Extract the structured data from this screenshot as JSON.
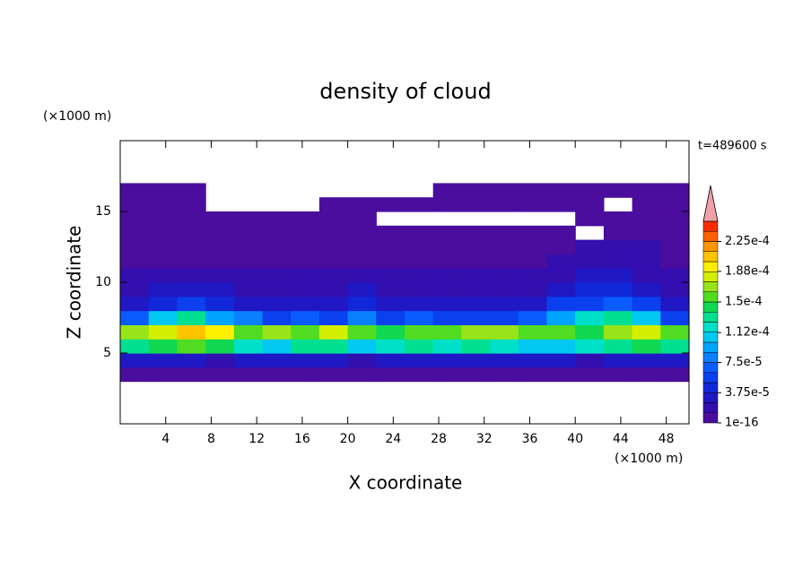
{
  "chart_data": {
    "type": "contour",
    "title": "density of cloud",
    "x_label": "X coordinate",
    "y_label": "Z coordinate",
    "x_unit": "(×1000 m)",
    "y_unit": "(×1000 m)",
    "annotation": "t=489600 s",
    "xlim": [
      0,
      50
    ],
    "ylim": [
      0,
      20
    ],
    "xticks": [
      4,
      8,
      12,
      16,
      20,
      24,
      28,
      32,
      36,
      40,
      44,
      48
    ],
    "yticks": [
      5,
      10,
      15
    ],
    "x": [
      1.25,
      3.75,
      6.25,
      8.75,
      11.25,
      13.75,
      16.25,
      18.75,
      21.25,
      23.75,
      26.25,
      28.75,
      31.25,
      33.75,
      36.25,
      38.75,
      41.25,
      43.75,
      46.25,
      48.75
    ],
    "y": [
      0.5,
      1.5,
      2.5,
      3.5,
      4.5,
      5.5,
      6.5,
      7.5,
      8.5,
      9.5,
      10.5,
      11.5,
      12.5,
      13.5,
      14.5,
      15.5,
      16.5,
      17.5,
      18.5,
      19.5
    ],
    "z": [
      [
        null,
        null,
        null,
        null,
        null,
        null,
        null,
        null,
        null,
        null,
        null,
        null,
        null,
        null,
        null,
        null,
        null,
        null,
        null,
        null
      ],
      [
        null,
        null,
        null,
        null,
        null,
        null,
        null,
        null,
        null,
        null,
        null,
        null,
        null,
        null,
        null,
        null,
        null,
        null,
        null,
        null
      ],
      [
        null,
        null,
        null,
        null,
        null,
        null,
        null,
        null,
        null,
        null,
        null,
        null,
        null,
        null,
        null,
        null,
        null,
        null,
        null,
        null
      ],
      [
        3e-06,
        3e-06,
        3e-06,
        3e-06,
        3e-06,
        3e-06,
        3e-06,
        3e-06,
        3e-06,
        3e-06,
        3e-06,
        3e-06,
        3e-06,
        3e-06,
        3e-06,
        3e-06,
        3e-06,
        3e-06,
        3e-06,
        3e-06
      ],
      [
        3e-05,
        2.5e-05,
        3e-05,
        2e-05,
        3e-05,
        3.5e-05,
        2.5e-05,
        3e-05,
        2e-05,
        3e-05,
        2.5e-05,
        3e-05,
        3.5e-05,
        2.5e-05,
        3e-05,
        2.5e-05,
        2e-05,
        3e-05,
        2.5e-05,
        3e-05
      ],
      [
        0.00013,
        0.00014,
        0.00015,
        0.000145,
        0.00012,
        0.00011,
        0.00013,
        0.000125,
        0.00011,
        0.00012,
        0.000135,
        0.00012,
        0.00013,
        0.000115,
        0.00011,
        0.0001,
        0.00012,
        0.00013,
        0.00014,
        0.00013
      ],
      [
        0.00017,
        0.00018,
        0.0002,
        0.00019,
        0.00016,
        0.00017,
        0.00015,
        0.00018,
        0.00016,
        0.00014,
        0.000155,
        0.00016,
        0.00017,
        0.000165,
        0.00015,
        0.00016,
        0.000145,
        0.00017,
        0.000185,
        0.00016
      ],
      [
        7e-05,
        0.0001,
        0.00013,
        9e-05,
        8e-05,
        6e-05,
        7e-05,
        5e-05,
        8e-05,
        6e-05,
        7e-05,
        6e-05,
        5e-05,
        6e-05,
        7e-05,
        9e-05,
        0.00012,
        0.00013,
        0.0001,
        6e-05
      ],
      [
        3.5e-05,
        4.5e-05,
        5e-05,
        4e-05,
        3e-05,
        3e-05,
        3.5e-05,
        3e-05,
        4e-05,
        3.5e-05,
        3e-05,
        2.5e-05,
        3e-05,
        3e-05,
        3.5e-05,
        5e-05,
        6e-05,
        6.5e-05,
        5e-05,
        3e-05
      ],
      [
        2e-05,
        2.5e-05,
        3e-05,
        2.5e-05,
        2e-05,
        1.8e-05,
        2e-05,
        1.8e-05,
        2.5e-05,
        2e-05,
        1.8e-05,
        1.5e-05,
        1.8e-05,
        1.8e-05,
        2e-05,
        3e-05,
        3.8e-05,
        4e-05,
        3e-05,
        2e-05
      ],
      [
        1.5e-05,
        1.5e-05,
        1.8e-05,
        1.5e-05,
        1.3e-05,
        1.3e-05,
        1.5e-05,
        1.3e-05,
        1.5e-05,
        1.4e-05,
        1.3e-05,
        1.3e-05,
        1.4e-05,
        1.3e-05,
        1.5e-05,
        2e-05,
        2.5e-05,
        2.7e-05,
        2e-05,
        1.4e-05
      ],
      [
        1e-05,
        8e-06,
        1e-05,
        8e-06,
        8e-06,
        1e-05,
        8e-06,
        8e-06,
        1e-05,
        8e-06,
        8e-06,
        6e-06,
        8e-06,
        8e-06,
        8e-06,
        1.3e-05,
        1.5e-05,
        1.6e-05,
        1.3e-05,
        1e-05
      ],
      [
        4e-06,
        4e-06,
        4e-06,
        4e-06,
        4e-06,
        4e-06,
        4e-06,
        4e-06,
        4e-06,
        4e-06,
        4e-06,
        4e-06,
        4e-06,
        4e-06,
        4e-06,
        4e-06,
        1.3e-05,
        1.3e-05,
        1.3e-05,
        4e-06
      ],
      [
        1e-06,
        1e-06,
        1e-06,
        1e-06,
        1e-06,
        1e-06,
        1e-06,
        1e-06,
        1e-06,
        1e-06,
        1e-06,
        1e-06,
        1e-06,
        1e-06,
        1e-06,
        1e-06,
        null,
        1e-06,
        1e-06,
        1e-06
      ],
      [
        5e-07,
        5e-07,
        5e-07,
        5e-07,
        5e-07,
        5e-07,
        5e-07,
        5e-07,
        5e-07,
        null,
        null,
        null,
        null,
        null,
        null,
        null,
        5e-07,
        5e-07,
        5e-07,
        5e-07
      ],
      [
        5e-07,
        5e-07,
        5e-07,
        null,
        null,
        null,
        null,
        5e-07,
        5e-07,
        5e-07,
        5e-07,
        5e-07,
        5e-07,
        5e-07,
        5e-07,
        5e-07,
        5e-07,
        null,
        5e-07,
        5e-07
      ],
      [
        5e-07,
        5e-07,
        5e-07,
        null,
        null,
        null,
        null,
        null,
        null,
        null,
        null,
        5e-07,
        5e-07,
        5e-07,
        5e-07,
        5e-07,
        5e-07,
        5e-07,
        5e-07,
        5e-07
      ],
      [
        null,
        null,
        null,
        null,
        null,
        null,
        null,
        null,
        null,
        null,
        null,
        null,
        null,
        null,
        null,
        null,
        null,
        null,
        null,
        null
      ],
      [
        null,
        null,
        null,
        null,
        null,
        null,
        null,
        null,
        null,
        null,
        null,
        null,
        null,
        null,
        null,
        null,
        null,
        null,
        null,
        null
      ],
      [
        null,
        null,
        null,
        null,
        null,
        null,
        null,
        null,
        null,
        null,
        null,
        null,
        null,
        null,
        null,
        null,
        null,
        null,
        null,
        null
      ]
    ],
    "levels": [
      1e-16,
      1.25e-05,
      2.5e-05,
      3.75e-05,
      5e-05,
      6.25e-05,
      7.5e-05,
      8.75e-05,
      0.0001,
      0.0001125,
      0.000125,
      0.0001375,
      0.00015,
      0.0001625,
      0.000175,
      0.0001875,
      0.0002,
      0.0002125,
      0.000225,
      0.0002375,
      0.00025
    ],
    "colors": [
      "#4a0d9e",
      "#330fb0",
      "#2018c4",
      "#1028d8",
      "#0a40ee",
      "#0a5cff",
      "#0a80ff",
      "#00a4ff",
      "#00c8f0",
      "#00e0c8",
      "#00e090",
      "#10d850",
      "#50dc20",
      "#98e418",
      "#d4ee00",
      "#fff000",
      "#ffc400",
      "#ff9600",
      "#ff6000",
      "#ff2a00"
    ],
    "over_color": "#f0a0a8",
    "cbticks": [
      1e-16,
      {
        "value": 3.75e-05,
        "label": "3.75e-5"
      },
      {
        "value": 7.5e-05,
        "label": "7.5e-5"
      },
      {
        "value": 0.000112,
        "label": "1.12e-4"
      },
      {
        "value": 0.00015,
        "label": "1.5e-4"
      },
      {
        "value": 0.000188,
        "label": "1.88e-4"
      },
      {
        "value": 0.000225,
        "label": "2.25e-4"
      }
    ]
  }
}
